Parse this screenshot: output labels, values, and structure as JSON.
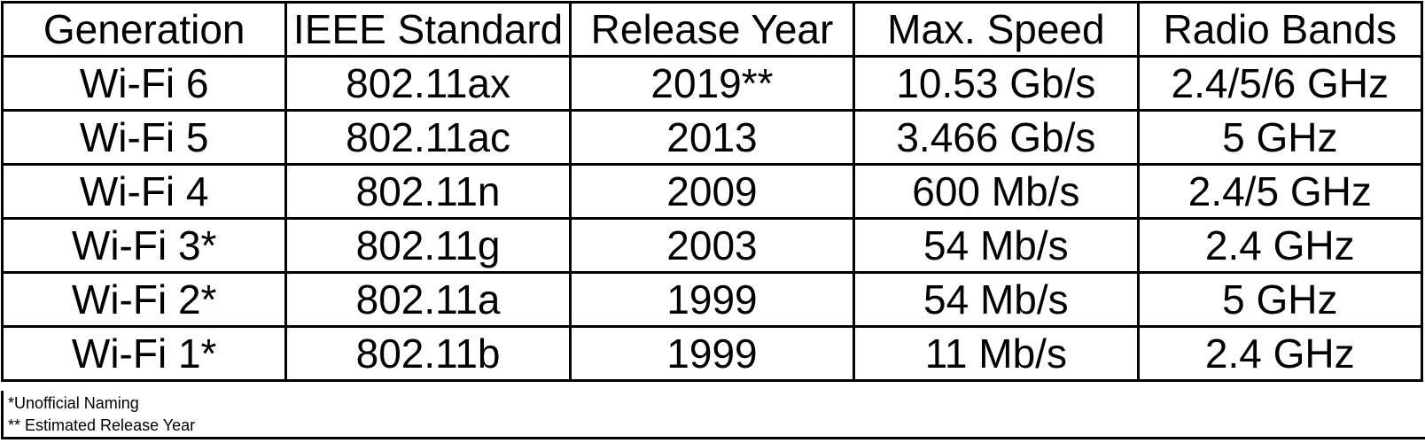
{
  "table": {
    "headers": [
      "Generation",
      "IEEE Standard",
      "Release Year",
      "Max. Speed",
      "Radio Bands"
    ],
    "rows": [
      [
        "Wi-Fi 6",
        "802.11ax",
        "2019**",
        "10.53 Gb/s",
        "2.4/5/6 GHz"
      ],
      [
        "Wi-Fi 5",
        "802.11ac",
        "2013",
        "3.466 Gb/s",
        "5 GHz"
      ],
      [
        "Wi-Fi 4",
        "802.11n",
        "2009",
        "600 Mb/s",
        "2.4/5 GHz"
      ],
      [
        "Wi-Fi 3*",
        "802.11g",
        "2003",
        "54 Mb/s",
        "2.4 GHz"
      ],
      [
        "Wi-Fi 2*",
        "802.11a",
        "1999",
        "54 Mb/s",
        "5 GHz"
      ],
      [
        "Wi-Fi 1*",
        "802.11b",
        "1999",
        "11 Mb/s",
        "2.4 GHz"
      ]
    ]
  },
  "footnotes": [
    "*Unofficial Naming",
    "** Estimated Release Year"
  ],
  "colors": {
    "border": "#000000",
    "text": "#000000",
    "background": "#ffffff"
  }
}
